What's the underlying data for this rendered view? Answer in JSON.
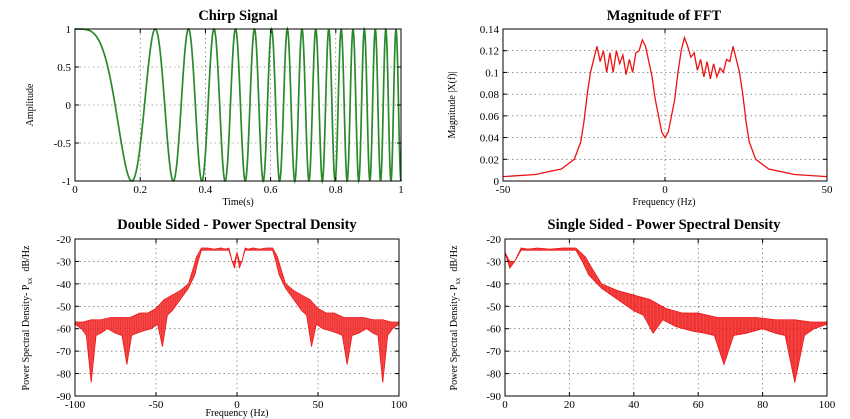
{
  "colors": {
    "chirp": "#2a8a2a",
    "spectrum": "#ee1111"
  },
  "chart_data": [
    {
      "type": "line",
      "title": "Chirp Signal",
      "xlabel": "Time(s)",
      "ylabel": "Amplitude",
      "xlim": [
        0,
        1
      ],
      "ylim": [
        -1,
        1
      ],
      "xticks": [
        "0",
        "0.2",
        "0.4",
        "0.6",
        "0.8",
        "1"
      ],
      "yticks": [
        "1",
        "0.5",
        "0",
        "-0.5",
        "-1"
      ],
      "grid": true,
      "series": [
        {
          "function": "cos(2*pi*(f0*t + k*t^2/2))",
          "f0": 0,
          "k": 33,
          "t_range": [
            0,
            1
          ],
          "samples": 700
        }
      ]
    },
    {
      "type": "line",
      "title": "Magnitude of FFT",
      "xlabel": "Frequency (Hz)",
      "ylabel": "Magnitude |X(f)|",
      "xlim": [
        -50,
        50
      ],
      "ylim": [
        0,
        0.14
      ],
      "xticks": [
        "-50",
        "0",
        "50"
      ],
      "yticks": [
        "0.14",
        "0.12",
        "0.1",
        "0.08",
        "0.06",
        "0.04",
        "0.02",
        "0"
      ],
      "grid": true,
      "series": [
        {
          "x": [
            -50,
            -40,
            -32,
            -28,
            -26,
            -25,
            -24,
            -23,
            -22,
            -21,
            -20,
            -19,
            -18,
            -17,
            -16,
            -15,
            -14,
            -13,
            -12,
            -11,
            -10,
            -9,
            -8,
            -7,
            -6,
            -5,
            -4,
            -3,
            -2,
            -1,
            0,
            1,
            2,
            3,
            4,
            5,
            6,
            7,
            8,
            9,
            10,
            11,
            12,
            13,
            14,
            15,
            16,
            17,
            18,
            19,
            20,
            21,
            22,
            23,
            24,
            25,
            26,
            28,
            32,
            40,
            50
          ],
          "y": [
            0.004,
            0.006,
            0.011,
            0.02,
            0.036,
            0.055,
            0.08,
            0.1,
            0.112,
            0.124,
            0.11,
            0.12,
            0.1,
            0.118,
            0.1,
            0.12,
            0.108,
            0.116,
            0.098,
            0.112,
            0.1,
            0.118,
            0.12,
            0.13,
            0.124,
            0.11,
            0.096,
            0.075,
            0.06,
            0.045,
            0.04,
            0.045,
            0.06,
            0.075,
            0.1,
            0.12,
            0.132,
            0.124,
            0.114,
            0.118,
            0.102,
            0.112,
            0.096,
            0.11,
            0.094,
            0.108,
            0.096,
            0.104,
            0.1,
            0.112,
            0.11,
            0.124,
            0.112,
            0.1,
            0.08,
            0.055,
            0.036,
            0.02,
            0.011,
            0.006,
            0.004
          ]
        }
      ]
    },
    {
      "type": "area",
      "title": "Double Sided - Power Spectral Density",
      "xlabel": "Frequency (Hz)",
      "ylabel": "Power Spectral Density- P",
      "ylabel_subscript": "xx",
      "ylabel_unit": "dB/Hz",
      "xlim": [
        -100,
        100
      ],
      "ylim": [
        -90,
        -20
      ],
      "xticks": [
        "-100",
        "-50",
        "0",
        "50",
        "100"
      ],
      "yticks": [
        "-20",
        "-30",
        "-40",
        "-50",
        "-60",
        "-70",
        "-80",
        "-90"
      ],
      "grid": true,
      "series": [
        {
          "upper_x": [
            0,
            1.5,
            3,
            5,
            7,
            10,
            14,
            18,
            22,
            25,
            27,
            30,
            35,
            40,
            45,
            50,
            55,
            60,
            66,
            72,
            78,
            84,
            90,
            95,
            100
          ],
          "upper_y": [
            -26,
            -30,
            -30,
            -24,
            -24.5,
            -24,
            -24.5,
            -24,
            -24,
            -28,
            -33,
            -40,
            -43,
            -45,
            -47,
            -51,
            -53,
            -53,
            -55,
            -55,
            -55,
            -56,
            -56,
            -57,
            -57
          ],
          "lower_x": [
            0,
            1.5,
            3,
            5,
            22,
            24,
            26,
            30,
            35,
            40,
            43,
            46,
            49,
            53,
            58,
            62,
            65,
            68,
            71,
            75,
            80,
            84,
            87,
            90,
            93,
            96,
            100
          ],
          "lower_y": [
            -26,
            -33,
            -30,
            -25,
            -25,
            -30,
            -36,
            -42,
            -47,
            -52,
            -54,
            -68,
            -58,
            -60,
            -61,
            -62,
            -63,
            -76,
            -63,
            -62,
            -60,
            -62,
            -63,
            -84,
            -63,
            -60,
            -58
          ]
        }
      ]
    },
    {
      "type": "area",
      "title": "Single Sided - Power Spectral Density",
      "xlabel": "",
      "ylabel": "Power Spectral Density- P",
      "ylabel_subscript": "xx",
      "ylabel_unit": "dB/Hz",
      "xlim": [
        0,
        100
      ],
      "ylim": [
        -90,
        -20
      ],
      "xticks": [
        "0",
        "20",
        "40",
        "60",
        "80",
        "100"
      ],
      "yticks": [
        "-20",
        "-30",
        "-40",
        "-50",
        "-60",
        "-70",
        "-80",
        "-90"
      ],
      "grid": true,
      "series": [
        {
          "upper_x": [
            0,
            1.5,
            3,
            5,
            7,
            10,
            14,
            18,
            22,
            25,
            27,
            30,
            35,
            40,
            45,
            50,
            55,
            60,
            66,
            72,
            78,
            84,
            90,
            95,
            100
          ],
          "upper_y": [
            -26,
            -30,
            -30,
            -24,
            -24.5,
            -24,
            -24.5,
            -24,
            -24,
            -28,
            -33,
            -40,
            -43,
            -45,
            -47,
            -51,
            -53,
            -53,
            -55,
            -55,
            -55,
            -56,
            -56,
            -57,
            -57
          ],
          "lower_x": [
            0,
            1.5,
            3,
            5,
            22,
            24,
            26,
            30,
            35,
            40,
            43,
            46,
            49,
            53,
            58,
            62,
            65,
            68,
            71,
            75,
            80,
            84,
            87,
            90,
            93,
            96,
            100
          ],
          "lower_y": [
            -26,
            -33,
            -30,
            -25,
            -25,
            -30,
            -36,
            -42,
            -47,
            -52,
            -54,
            -62,
            -56,
            -59,
            -61,
            -62,
            -63,
            -76,
            -63,
            -62,
            -60,
            -62,
            -63,
            -84,
            -63,
            -60,
            -58
          ]
        }
      ]
    }
  ]
}
